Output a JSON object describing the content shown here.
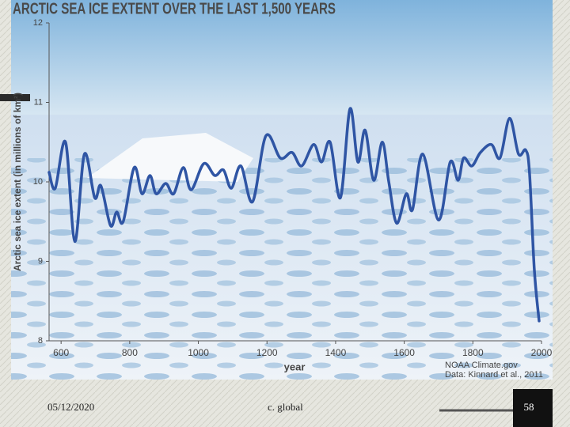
{
  "chart_data": {
    "type": "line",
    "title": "ARCTIC SEA ICE EXTENT OVER THE LAST 1,500 YEARS",
    "x_label": "year",
    "y_label": "Arctic sea ice extent (in millions of km²)",
    "x": [
      565,
      583,
      613,
      640,
      668,
      698,
      716,
      744,
      762,
      781,
      813,
      836,
      859,
      877,
      905,
      928,
      956,
      979,
      1016,
      1048,
      1073,
      1096,
      1124,
      1158,
      1197,
      1239,
      1273,
      1301,
      1336,
      1359,
      1384,
      1414,
      1442,
      1465,
      1486,
      1511,
      1536,
      1555,
      1578,
      1606,
      1624,
      1654,
      1700,
      1734,
      1757,
      1773,
      1797,
      1822,
      1854,
      1879,
      1907,
      1933,
      1954,
      1965,
      1979,
      1993
    ],
    "values": [
      10.12,
      9.92,
      10.5,
      9.25,
      10.35,
      9.8,
      9.95,
      9.45,
      9.62,
      9.5,
      10.18,
      9.85,
      10.08,
      9.85,
      9.98,
      9.85,
      10.18,
      9.9,
      10.23,
      10.08,
      10.15,
      9.92,
      10.2,
      9.75,
      10.58,
      10.3,
      10.37,
      10.2,
      10.47,
      10.25,
      10.5,
      9.8,
      10.92,
      10.25,
      10.65,
      10.02,
      10.5,
      10.0,
      9.48,
      9.85,
      9.65,
      10.35,
      9.52,
      10.25,
      10.02,
      10.3,
      10.2,
      10.37,
      10.47,
      10.3,
      10.8,
      10.35,
      10.4,
      10.12,
      8.9,
      8.25
    ],
    "color": "#2f55a4",
    "xlim": [
      565,
      2000
    ],
    "ylim": [
      8,
      12
    ],
    "xticks": [
      600,
      800,
      1000,
      1200,
      1400,
      1600,
      1800,
      2000
    ],
    "yticks": [
      8,
      9,
      10,
      11,
      12
    ],
    "credit": [
      "NOAA Climate.gov",
      "Data: Kinnard et al., 2011"
    ]
  },
  "footer": {
    "date": "05/12/2020",
    "organization": "c. global",
    "page": "58"
  }
}
